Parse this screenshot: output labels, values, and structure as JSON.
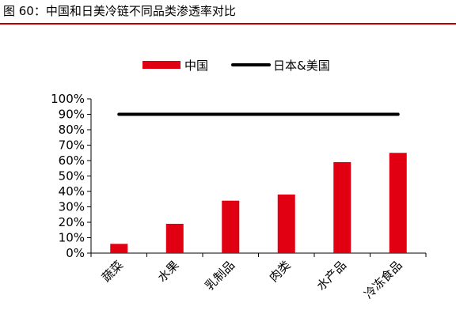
{
  "figure": {
    "title": "图 60：中国和日美冷链不同品类渗透率对比"
  },
  "chart_data": {
    "type": "bar",
    "categories": [
      "蔬菜",
      "水果",
      "乳制品",
      "肉类",
      "水产品",
      "冷冻食品"
    ],
    "series": [
      {
        "name": "中国",
        "type": "bar",
        "color": "#e00012",
        "values": [
          6,
          19,
          34,
          38,
          59,
          65
        ]
      },
      {
        "name": "日本&美国",
        "type": "line",
        "color": "#000000",
        "values": [
          90,
          90,
          90,
          90,
          90,
          90
        ]
      }
    ],
    "yticks": [
      "0%",
      "10%",
      "20%",
      "30%",
      "40%",
      "50%",
      "60%",
      "70%",
      "80%",
      "90%",
      "100%"
    ],
    "ylim": [
      0,
      100
    ],
    "legend_position": "top",
    "grid": false
  }
}
